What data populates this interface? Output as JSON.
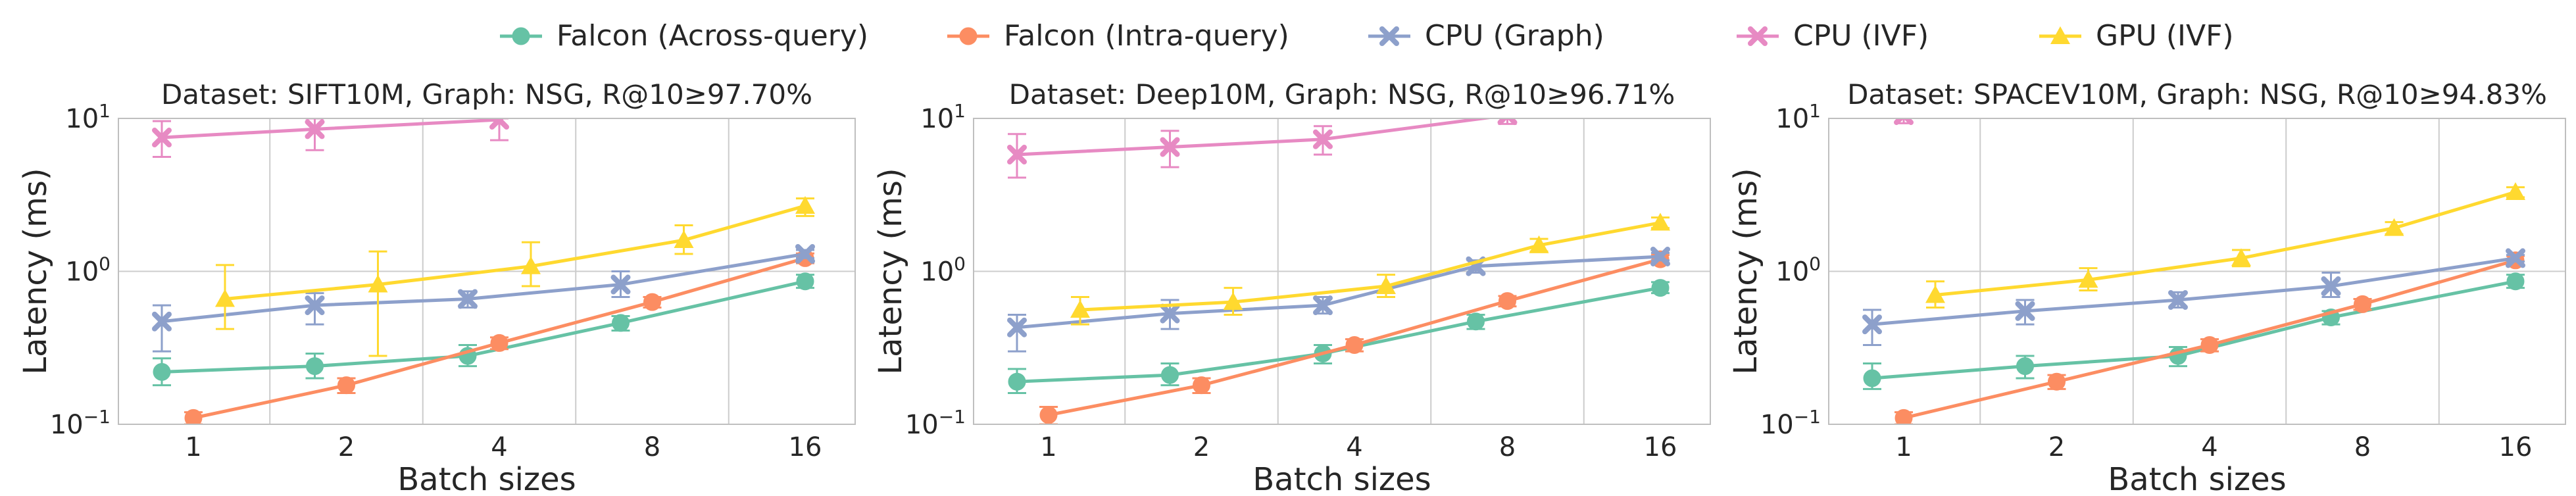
{
  "legend": {
    "placement": "top-center",
    "items": [
      {
        "label": "Falcon (Across-query)",
        "color": "#66c2a5",
        "marker": "circle"
      },
      {
        "label": "Falcon (Intra-query)",
        "color": "#fc8d62",
        "marker": "circle"
      },
      {
        "label": "CPU (Graph)",
        "color": "#8da0cb",
        "marker": "x"
      },
      {
        "label": "CPU (IVF)",
        "color": "#e78ac3",
        "marker": "x"
      },
      {
        "label": "GPU (IVF)",
        "color": "#ffd92f",
        "marker": "triangle"
      }
    ]
  },
  "chart_data": [
    {
      "type": "line",
      "title": "Dataset: SIFT10M, Graph: NSG, R@10≥97.70%",
      "xlabel": "Batch sizes",
      "ylabel": "Latency (ms)",
      "x_scale": "log2",
      "y_scale": "log10",
      "ylim": [
        0.1,
        10
      ],
      "grid": true,
      "categories": [
        "1",
        "2",
        "4",
        "8",
        "16"
      ],
      "y_ticks": [
        "10−1",
        "100",
        "101"
      ],
      "series": [
        {
          "name": "Falcon (Across-query)",
          "x": [
            1,
            2,
            4,
            8,
            16
          ],
          "y": [
            0.22,
            0.24,
            0.28,
            0.46,
            0.86
          ],
          "err_low": [
            0.18,
            0.2,
            0.24,
            0.41,
            0.78
          ],
          "err_high": [
            0.27,
            0.29,
            0.33,
            0.51,
            0.95
          ]
        },
        {
          "name": "Falcon (Intra-query)",
          "x": [
            1,
            2,
            4,
            8,
            16
          ],
          "y": [
            0.11,
            0.18,
            0.34,
            0.63,
            1.22
          ],
          "err_low": [
            0.1,
            0.16,
            0.31,
            0.58,
            1.13
          ],
          "err_high": [
            0.12,
            0.2,
            0.37,
            0.68,
            1.31
          ]
        },
        {
          "name": "CPU (Graph)",
          "x": [
            1,
            2,
            4,
            8,
            16
          ],
          "y": [
            0.47,
            0.6,
            0.66,
            0.82,
            1.3
          ],
          "err_low": [
            0.3,
            0.45,
            0.58,
            0.68,
            1.22
          ],
          "err_high": [
            0.6,
            0.72,
            0.74,
            1.0,
            1.38
          ]
        },
        {
          "name": "CPU (IVF)",
          "x": [
            1,
            2,
            4
          ],
          "y": [
            7.5,
            8.5,
            9.8
          ],
          "err_low": [
            5.6,
            6.2,
            7.2
          ],
          "err_high": [
            9.6,
            10.0,
            10.0
          ]
        },
        {
          "name": "GPU (IVF)",
          "x": [
            1,
            2,
            4,
            8,
            16
          ],
          "y": [
            0.66,
            0.82,
            1.08,
            1.6,
            2.68
          ],
          "err_low": [
            0.42,
            0.28,
            0.8,
            1.3,
            2.3
          ],
          "err_high": [
            1.1,
            1.35,
            1.55,
            2.0,
            3.0
          ]
        }
      ]
    },
    {
      "type": "line",
      "title": "Dataset: Deep10M, Graph: NSG, R@10≥96.71%",
      "xlabel": "Batch sizes",
      "ylabel": "Latency (ms)",
      "x_scale": "log2",
      "y_scale": "log10",
      "ylim": [
        0.1,
        10
      ],
      "grid": true,
      "categories": [
        "1",
        "2",
        "4",
        "8",
        "16"
      ],
      "y_ticks": [
        "10−1",
        "100",
        "101"
      ],
      "series": [
        {
          "name": "Falcon (Across-query)",
          "x": [
            1,
            2,
            4,
            8,
            16
          ],
          "y": [
            0.19,
            0.21,
            0.29,
            0.47,
            0.78
          ],
          "err_low": [
            0.16,
            0.18,
            0.25,
            0.42,
            0.72
          ],
          "err_high": [
            0.23,
            0.25,
            0.33,
            0.52,
            0.85
          ]
        },
        {
          "name": "Falcon (Intra-query)",
          "x": [
            1,
            2,
            4,
            8,
            16
          ],
          "y": [
            0.115,
            0.18,
            0.33,
            0.64,
            1.2
          ],
          "err_low": [
            0.1,
            0.16,
            0.3,
            0.59,
            1.12
          ],
          "err_high": [
            0.13,
            0.2,
            0.36,
            0.69,
            1.28
          ]
        },
        {
          "name": "CPU (Graph)",
          "x": [
            1,
            2,
            4,
            8,
            16
          ],
          "y": [
            0.43,
            0.53,
            0.6,
            1.08,
            1.25
          ],
          "err_low": [
            0.3,
            0.42,
            0.53,
            0.98,
            1.18
          ],
          "err_high": [
            0.52,
            0.65,
            0.68,
            1.18,
            1.32
          ]
        },
        {
          "name": "CPU (IVF)",
          "x": [
            1,
            2,
            4,
            8
          ],
          "y": [
            5.8,
            6.5,
            7.3,
            10.5
          ],
          "err_low": [
            4.1,
            4.8,
            5.8,
            9.2
          ],
          "err_high": [
            7.9,
            8.3,
            8.9,
            11.8
          ]
        },
        {
          "name": "GPU (IVF)",
          "x": [
            1,
            2,
            4,
            8,
            16
          ],
          "y": [
            0.56,
            0.63,
            0.8,
            1.48,
            2.08
          ],
          "err_low": [
            0.45,
            0.52,
            0.68,
            1.35,
            1.92
          ],
          "err_high": [
            0.68,
            0.78,
            0.95,
            1.63,
            2.25
          ]
        }
      ]
    },
    {
      "type": "line",
      "title": "Dataset: SPACEV10M, Graph: NSG, R@10≥94.83%",
      "xlabel": "Batch sizes",
      "ylabel": "Latency (ms)",
      "x_scale": "log2",
      "y_scale": "log10",
      "ylim": [
        0.1,
        10
      ],
      "grid": true,
      "categories": [
        "1",
        "2",
        "4",
        "8",
        "16"
      ],
      "y_ticks": [
        "10−1",
        "100",
        "101"
      ],
      "series": [
        {
          "name": "Falcon (Across-query)",
          "x": [
            1,
            2,
            4,
            8,
            16
          ],
          "y": [
            0.2,
            0.24,
            0.28,
            0.5,
            0.86
          ],
          "err_low": [
            0.17,
            0.2,
            0.24,
            0.45,
            0.78
          ],
          "err_high": [
            0.25,
            0.28,
            0.32,
            0.55,
            0.95
          ]
        },
        {
          "name": "Falcon (Intra-query)",
          "x": [
            1,
            2,
            4,
            8,
            16
          ],
          "y": [
            0.11,
            0.19,
            0.33,
            0.61,
            1.18
          ],
          "err_low": [
            0.1,
            0.17,
            0.3,
            0.56,
            1.1
          ],
          "err_high": [
            0.12,
            0.21,
            0.36,
            0.66,
            1.26
          ]
        },
        {
          "name": "CPU (Graph)",
          "x": [
            1,
            2,
            4,
            8,
            16
          ],
          "y": [
            0.45,
            0.55,
            0.65,
            0.8,
            1.22
          ],
          "err_low": [
            0.33,
            0.45,
            0.58,
            0.68,
            1.16
          ],
          "err_high": [
            0.56,
            0.65,
            0.73,
            0.98,
            1.28
          ]
        },
        {
          "name": "CPU (IVF)",
          "x": [
            1
          ],
          "y": [
            10.5
          ],
          "err_low": [
            9.3
          ],
          "err_high": [
            11.5
          ]
        },
        {
          "name": "GPU (IVF)",
          "x": [
            1,
            2,
            4,
            8,
            16
          ],
          "y": [
            0.7,
            0.88,
            1.22,
            1.92,
            3.3
          ],
          "err_low": [
            0.58,
            0.75,
            1.08,
            1.75,
            3.05
          ],
          "err_high": [
            0.86,
            1.05,
            1.38,
            2.1,
            3.55
          ]
        }
      ]
    }
  ]
}
